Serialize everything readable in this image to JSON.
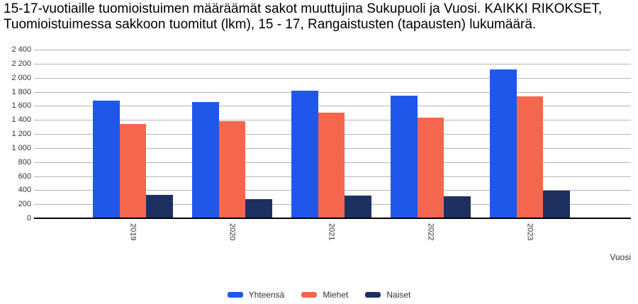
{
  "chart_data": {
    "type": "bar",
    "title": "15-17-vuotiaille tuomioistuimen määräämät sakot muuttujina Sukupuoli ja Vuosi. KAIKKI RIKOKSET, Tuomioistuimessa sakkoon tuomitut (lkm), 15 - 17, Rangaistusten (tapausten) lukumäärä.",
    "categories": [
      "2019",
      "2020",
      "2021",
      "2022",
      "2023"
    ],
    "series": [
      {
        "name": "Yhteensä",
        "color": "#1f57eb",
        "values": [
          1670,
          1650,
          1820,
          1740,
          2120
        ]
      },
      {
        "name": "Miehet",
        "color": "#f4664d",
        "values": [
          1340,
          1380,
          1500,
          1430,
          1730
        ]
      },
      {
        "name": "Naiset",
        "color": "#1e3060",
        "values": [
          330,
          270,
          320,
          310,
          390
        ]
      }
    ],
    "xlabel": "Vuosi",
    "ylabel": "",
    "ylim": [
      0,
      2400
    ],
    "ytick_step": 200,
    "ytick_labels": [
      "0",
      "200",
      "400",
      "600",
      "800",
      "1 000",
      "1 200",
      "1 400",
      "1 600",
      "1 800",
      "2 000",
      "2 200",
      "2 400"
    ],
    "grid": true,
    "legend_position": "bottom",
    "colors": {
      "grid": "#b3b3b3",
      "axis": "#000000",
      "tick_label": "#333333",
      "title": "#000000",
      "background": "#ffffff"
    }
  }
}
